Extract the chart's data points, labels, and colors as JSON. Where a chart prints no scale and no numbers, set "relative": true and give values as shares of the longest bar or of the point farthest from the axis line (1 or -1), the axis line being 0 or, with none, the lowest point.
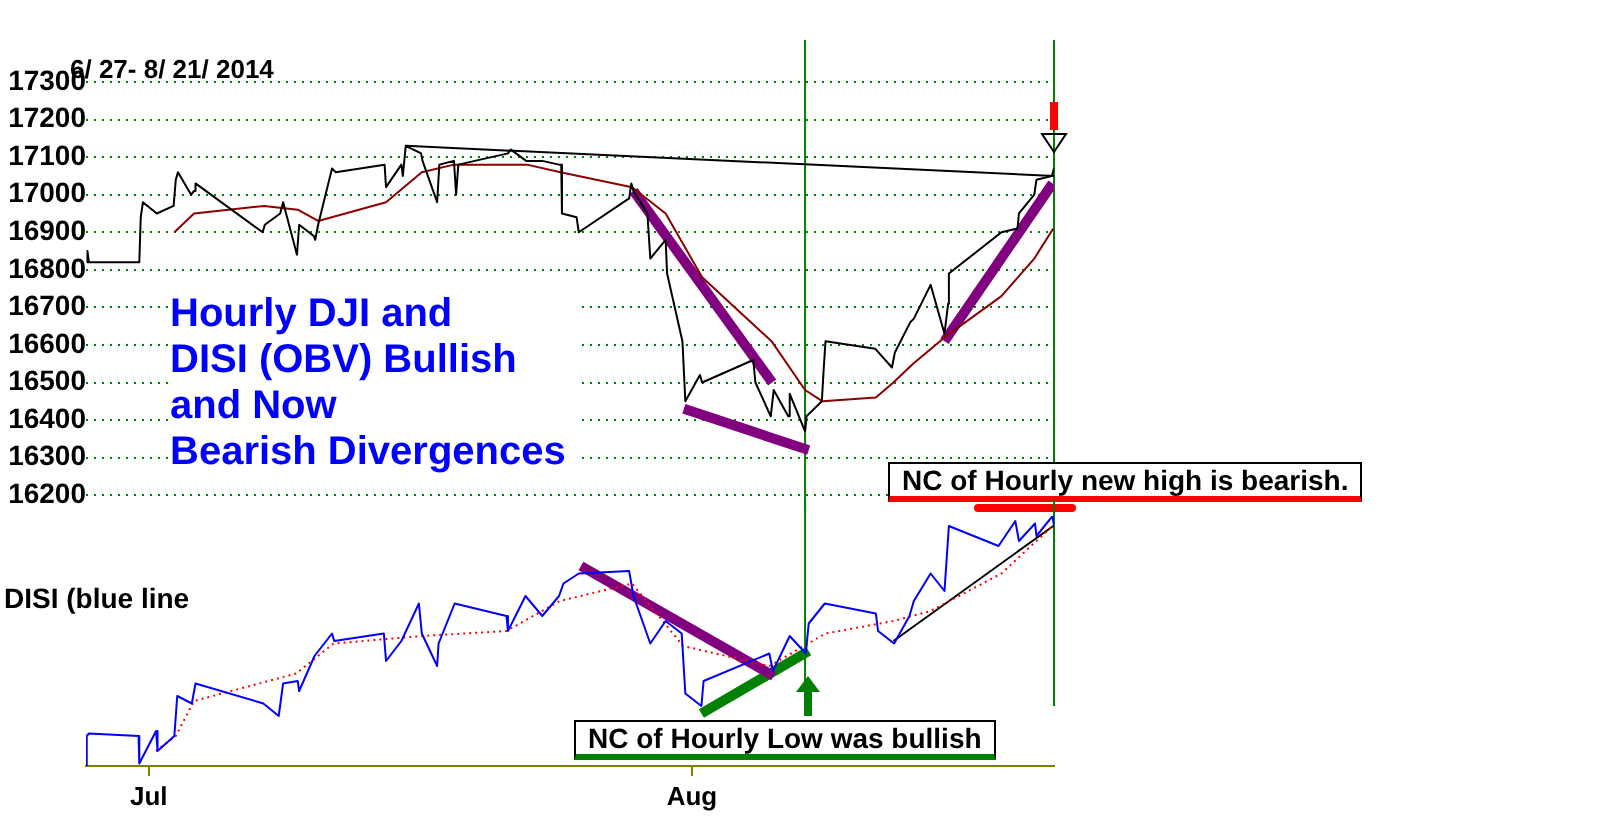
{
  "chart_data": [
    {
      "type": "line",
      "title": "Hourly DJI and\nDISI (OBV) Bullish\nand Now\nBearish Divergences",
      "subtitle": "6/ 27- 8/ 21/ 2014",
      "annotations": [
        "NC of Hourly new high is bearish."
      ],
      "xlim": [
        "2014-06-27T10:00",
        "2014-08-21T16:00"
      ],
      "ylim": [
        16200,
        17300
      ],
      "yticks": [
        16200,
        16300,
        16400,
        16500,
        16600,
        16700,
        16800,
        16900,
        17000,
        17100,
        17200,
        17300
      ],
      "grid": "y",
      "tick_labels": "y",
      "marker": "none",
      "ref_lines": [
        {
          "axis": "x",
          "value": "2014-08-07T11:00",
          "color": "#008000"
        },
        {
          "axis": "x",
          "value": "2014-08-21T16:00",
          "color": "#008000"
        }
      ],
      "series": [
        {
          "color": "#000000",
          "x": [
            "2014-06-27T11:00",
            "2014-06-27T12:00",
            "2014-06-27T14:00",
            "2014-06-30T11:00",
            "2014-06-30T13:00",
            "2014-06-30T16:00",
            "2014-07-01T11:00",
            "2014-07-02T10:00",
            "2014-07-02T13:00",
            "2014-07-02T16:00",
            "2014-07-03T10:00",
            "2014-07-03T14:00",
            "2014-07-03T16:00",
            "2014-07-07T12:00",
            "2014-07-07T15:00",
            "2014-07-08T12:00",
            "2014-07-08T16:00",
            "2014-07-09T11:00",
            "2014-07-09T14:00",
            "2014-07-10T10:00",
            "2014-07-10T12:00",
            "2014-07-10T16:00",
            "2014-07-11T11:00",
            "2014-07-11T16:00",
            "2014-07-14T11:00",
            "2014-07-14T13:00",
            "2014-07-15T10:00",
            "2014-07-15T12:00",
            "2014-07-15T16:00",
            "2014-07-16T13:00",
            "2014-07-16T15:00",
            "2014-07-17T11:00",
            "2014-07-17T14:00",
            "2014-07-18T10:00",
            "2014-07-18T13:00",
            "2014-07-18T16:00",
            "2014-07-21T12:00",
            "2014-07-21T16:00",
            "2014-07-22T13:00",
            "2014-07-23T11:00",
            "2014-07-24T10:00",
            "2014-07-24T13:00",
            "2014-07-24T14:00",
            "2014-07-25T10:00",
            "2014-07-25T13:00",
            "2014-07-28T10:00",
            "2014-07-28T13:00",
            "2014-07-28T16:00",
            "2014-07-29T11:00",
            "2014-07-29T15:00",
            "2014-07-30T12:00",
            "2014-07-30T14:00",
            "2014-07-31T11:00",
            "2014-07-31T15:00",
            "2014-08-01T11:00",
            "2014-08-01T14:00",
            "2014-08-04T12:00",
            "2014-08-04T15:00",
            "2014-08-05T12:00",
            "2014-08-05T16:00",
            "2014-08-06T12:00",
            "2014-08-06T14:00",
            "2014-08-07T11:00",
            "2014-08-07T13:00",
            "2014-08-08T10:00",
            "2014-08-08T12:00",
            "2014-08-08T15:00",
            "2014-08-11T11:00",
            "2014-08-12T10:00",
            "2014-08-12T14:00",
            "2014-08-13T11:00",
            "2014-08-13T16:00",
            "2014-08-14T15:00",
            "2014-08-15T10:00",
            "2014-08-15T15:00",
            "2014-08-15T16:00",
            "2014-08-18T16:00",
            "2014-08-19T14:00",
            "2014-08-19T16:00",
            "2014-08-20T13:00",
            "2014-08-20T16:00",
            "2014-08-21T13:00",
            "2014-08-21T16:00"
          ],
          "values": [
            16820,
            16850,
            16820,
            16820,
            16940,
            16980,
            16950,
            16970,
            17040,
            17060,
            17000,
            17010,
            17030,
            16900,
            16920,
            16950,
            16980,
            16840,
            16920,
            16890,
            16880,
            16920,
            17070,
            17060,
            17080,
            17020,
            17080,
            17050,
            17130,
            17110,
            17090,
            16980,
            17080,
            17090,
            17000,
            17080,
            17110,
            17120,
            17090,
            17090,
            17080,
            17080,
            16950,
            16940,
            16900,
            16990,
            17030,
            17010,
            16950,
            16830,
            16880,
            16790,
            16610,
            16450,
            16520,
            16500,
            16560,
            16500,
            16410,
            16480,
            16410,
            16470,
            16370,
            16410,
            16450,
            16520,
            16610,
            16590,
            16540,
            16580,
            16660,
            16670,
            16760,
            16630,
            16710,
            16790,
            16900,
            16910,
            16950,
            17000,
            17040,
            17050,
            17070
          ]
        },
        {
          "color": "#8b0000",
          "x": [
            "2014-07-02T11:00",
            "2014-07-03T14:00",
            "2014-07-07T14:00",
            "2014-07-09T12:00",
            "2014-07-10T16:00",
            "2014-07-14T13:00",
            "2014-07-16T14:00",
            "2014-07-18T10:00",
            "2014-07-22T14:00",
            "2014-07-24T12:00",
            "2014-07-28T14:00",
            "2014-07-30T12:00",
            "2014-08-01T14:00",
            "2014-08-05T13:00",
            "2014-08-07T11:00",
            "2014-08-08T11:00",
            "2014-08-11T12:00",
            "2014-08-12T12:00",
            "2014-08-13T15:00",
            "2014-08-15T10:00",
            "2014-08-18T16:00",
            "2014-08-20T13:00",
            "2014-08-21T15:00"
          ],
          "values": [
            16900,
            16950,
            16970,
            16960,
            16930,
            16980,
            17060,
            17080,
            17080,
            17060,
            17020,
            16950,
            16780,
            16610,
            16480,
            16450,
            16460,
            16500,
            16550,
            16620,
            16730,
            16830,
            16910
          ]
        },
        {
          "color": "#000000",
          "x": [
            "2014-07-15T16:00",
            "2014-08-21T16:00"
          ],
          "values": [
            17130,
            17050
          ]
        },
        {
          "color": "#800080",
          "x": [
            "2014-07-28T16:00",
            "2014-08-05T14:00"
          ],
          "values": [
            17010,
            16500
          ]
        },
        {
          "color": "#800080",
          "x": [
            "2014-07-31T13:00",
            "2014-08-07T16:00"
          ],
          "values": [
            16430,
            16320
          ]
        },
        {
          "color": "#800080",
          "x": [
            "2014-08-15T10:00",
            "2014-08-21T14:00"
          ],
          "values": [
            16610,
            17030
          ]
        }
      ]
    },
    {
      "type": "line",
      "ylabel": "DISI (blue line",
      "annotations": [
        "NC of Hourly Low was bullish"
      ],
      "relative": true,
      "xlim": [
        "2014-06-27T10:00",
        "2014-08-21T16:00"
      ],
      "xticks": [
        {
          "value": "2014-07-01",
          "label": "Jul"
        },
        {
          "value": "2014-08-01",
          "label": "Aug"
        }
      ],
      "grid": false,
      "tick_labels": "x",
      "marker": "none",
      "ref_lines": [
        {
          "axis": "x",
          "value": "2014-08-07T11:00",
          "color": "#008000"
        },
        {
          "axis": "x",
          "value": "2014-08-21T16:00",
          "color": "#008000"
        }
      ],
      "series": [
        {
          "color": "#0000ff",
          "x": [
            "2014-06-27T10:00",
            "2014-06-27T11:00",
            "2014-06-27T14:00",
            "2014-06-30T10:00",
            "2014-06-30T11:00",
            "2014-07-01T10:00",
            "2014-07-01T12:00",
            "2014-07-02T11:00",
            "2014-07-02T15:00",
            "2014-07-03T11:00",
            "2014-07-03T16:00",
            "2014-07-07T13:00",
            "2014-07-08T10:00",
            "2014-07-08T16:00",
            "2014-07-09T12:00",
            "2014-07-09T14:00",
            "2014-07-10T11:00",
            "2014-07-11T11:00",
            "2014-07-11T14:00",
            "2014-07-14T10:00",
            "2014-07-14T13:00",
            "2014-07-15T10:00",
            "2014-07-16T10:00",
            "2014-07-16T14:00",
            "2014-07-17T11:00",
            "2014-07-17T13:00",
            "2014-07-18T11:00",
            "2014-07-21T10:00",
            "2014-07-21T12:00",
            "2014-07-22T12:00",
            "2014-07-23T11:00",
            "2014-07-24T10:00",
            "2014-07-24T16:00",
            "2014-07-25T13:00",
            "2014-07-28T10:00",
            "2014-07-28T16:00",
            "2014-07-29T15:00",
            "2014-07-30T12:00",
            "2014-07-31T10:00",
            "2014-07-31T15:00",
            "2014-08-01T13:00",
            "2014-08-01T16:00",
            "2014-08-05T10:00",
            "2014-08-05T15:00",
            "2014-08-06T14:00",
            "2014-08-07T12:00",
            "2014-08-07T16:00",
            "2014-08-08T14:00",
            "2014-08-11T12:00",
            "2014-08-11T15:00",
            "2014-08-12T13:00",
            "2014-08-13T10:00",
            "2014-08-13T16:00",
            "2014-08-14T15:00",
            "2014-08-15T10:00",
            "2014-08-15T16:00",
            "2014-08-18T12:00",
            "2014-08-19T11:00",
            "2014-08-19T16:00",
            "2014-08-20T14:00",
            "2014-08-20T16:00",
            "2014-08-21T14:00",
            "2014-08-21T16:00"
          ],
          "values": [
            0,
            0.12,
            0.13,
            0.12,
            0.01,
            0.14,
            0.06,
            0.12,
            0.28,
            0.25,
            0.33,
            0.25,
            0.2,
            0.33,
            0.34,
            0.3,
            0.44,
            0.53,
            0.5,
            0.53,
            0.42,
            0.5,
            0.65,
            0.53,
            0.4,
            0.49,
            0.65,
            0.6,
            0.54,
            0.68,
            0.6,
            0.68,
            0.73,
            0.77,
            0.78,
            0.68,
            0.49,
            0.58,
            0.53,
            0.29,
            0.24,
            0.34,
            0.45,
            0.38,
            0.52,
            0.45,
            0.57,
            0.65,
            0.61,
            0.54,
            0.49,
            0.6,
            0.66,
            0.77,
            0.7,
            0.96,
            0.88,
            0.98,
            0.9,
            0.97,
            0.92,
            1,
            0.96
          ]
        },
        {
          "color": "#ff0000",
          "line_style": "dotted",
          "x": [
            "2014-07-01T10:00",
            "2014-07-02T13:00",
            "2014-07-03T14:00",
            "2014-07-09T10:00",
            "2014-07-11T13:00",
            "2014-07-16T14:00",
            "2014-07-21T10:00",
            "2014-07-24T11:00",
            "2014-07-28T14:00",
            "2014-07-31T12:00",
            "2014-08-05T10:00",
            "2014-08-08T15:00",
            "2014-08-12T12:00",
            "2014-08-14T15:00",
            "2014-08-18T16:00",
            "2014-08-21T14:00"
          ],
          "values": [
            0.06,
            0.12,
            0.26,
            0.37,
            0.49,
            0.52,
            0.54,
            0.66,
            0.73,
            0.48,
            0.4,
            0.53,
            0.58,
            0.62,
            0.77,
            0.96
          ]
        },
        {
          "color": "#800080",
          "x": [
            "2014-07-25T16:00",
            "2014-08-05T16:00"
          ],
          "values": [
            0.8,
            0.36
          ]
        },
        {
          "color": "#008000",
          "x": [
            "2014-08-01T13:00",
            "2014-08-07T16:00"
          ],
          "values": [
            0.21,
            0.46
          ]
        },
        {
          "color": "#000000",
          "x": [
            "2014-08-12T12:00",
            "2014-08-21T15:00"
          ],
          "values": [
            0.5,
            0.96
          ]
        }
      ]
    }
  ]
}
